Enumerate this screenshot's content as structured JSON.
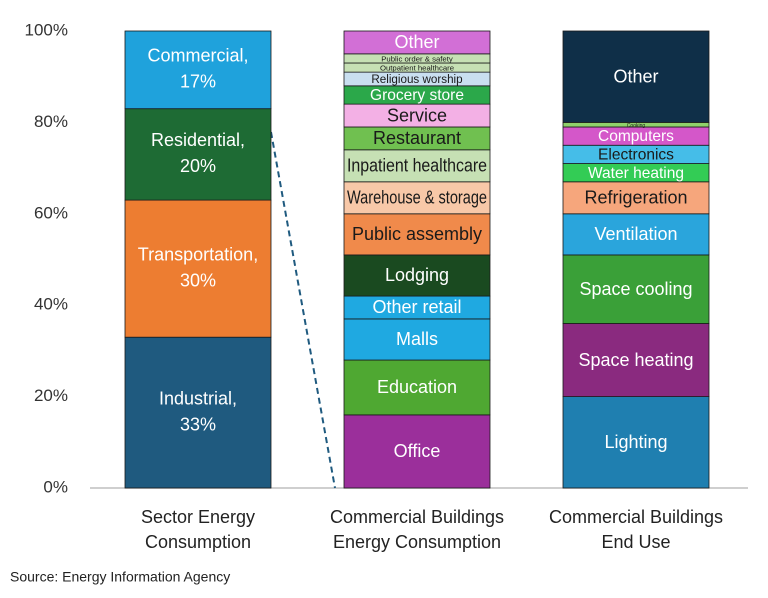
{
  "chart_data": {
    "type": "stacked_bar",
    "ylim": [
      0,
      100
    ],
    "yticks": [
      {
        "value": 0,
        "label": "0%"
      },
      {
        "value": 20,
        "label": "20%"
      },
      {
        "value": 40,
        "label": "40%"
      },
      {
        "value": 60,
        "label": "60%"
      },
      {
        "value": 80,
        "label": "80%"
      },
      {
        "value": 100,
        "label": "100%"
      }
    ],
    "grid": false,
    "source": "Source: Energy Information Agency",
    "groups": [
      {
        "label": [
          "Sector Energy",
          "Consumption"
        ],
        "segments": [
          {
            "name": "Industrial,",
            "color": "#1f5a7f",
            "value": 33,
            "value_label": "33%"
          },
          {
            "name": "Transportation,",
            "color": "#ed7d31",
            "value": 30,
            "value_label": "30%"
          },
          {
            "name": "Residential,",
            "color": "#1e6b34",
            "value": 20,
            "value_label": "20%"
          },
          {
            "name": "Commercial,",
            "color": "#1fa2dc",
            "value": 17,
            "value_label": "17%"
          }
        ]
      },
      {
        "label": [
          "Commercial Buildings",
          "Energy Consumption"
        ],
        "segments": [
          {
            "name": "Office",
            "color": "#9b2f9b",
            "value": 16
          },
          {
            "name": "Education",
            "color": "#4fa832",
            "value": 12
          },
          {
            "name": "Malls",
            "color": "#1fa9e1",
            "value": 9
          },
          {
            "name": "Other retail",
            "color": "#1fa9e1",
            "value": 5
          },
          {
            "name": "Lodging",
            "color": "#1a4a20",
            "value": 9
          },
          {
            "name": "Public assembly",
            "color": "#f08a4b",
            "value": 9
          },
          {
            "name": "Warehouse & storage",
            "color": "#f8c8a8",
            "value": 7
          },
          {
            "name": "Inpatient healthcare",
            "color": "#c6e0b4",
            "value": 7
          },
          {
            "name": "Restaurant",
            "color": "#70c050",
            "value": 5
          },
          {
            "name": "Service",
            "color": "#f3b0e5",
            "value": 5
          },
          {
            "name": "Grocery store",
            "color": "#2ba84a",
            "value": 4
          },
          {
            "name": "Religious worship",
            "color": "#c9dff0",
            "value": 3
          },
          {
            "name": "Outpatient healthcare",
            "color": "#c6e0b4",
            "value": 2
          },
          {
            "name": "Public order & safety",
            "color": "#c6e0b4",
            "value": 2
          },
          {
            "name": "Other",
            "color": "#d26fd6",
            "value": 5
          }
        ]
      },
      {
        "label": [
          "Commercial Buildings",
          "End Use"
        ],
        "segments": [
          {
            "name": "Lighting",
            "color": "#1f7fb0",
            "value": 20
          },
          {
            "name": "Space heating",
            "color": "#8a2a7f",
            "value": 16
          },
          {
            "name": "Space cooling",
            "color": "#3aa038",
            "value": 15
          },
          {
            "name": "Ventilation",
            "color": "#2aa5dc",
            "value": 9
          },
          {
            "name": "Refrigeration",
            "color": "#f6a67c",
            "value": 7
          },
          {
            "name": "Water heating",
            "color": "#33cc55",
            "value": 4
          },
          {
            "name": "Electronics",
            "color": "#45bde8",
            "value": 4
          },
          {
            "name": "Computers",
            "color": "#d457c9",
            "value": 4
          },
          {
            "name": "Cooking",
            "color": "#8fd16a",
            "value": 1
          },
          {
            "name": "Other",
            "color": "#0f2f48",
            "value": 20
          }
        ]
      }
    ]
  }
}
